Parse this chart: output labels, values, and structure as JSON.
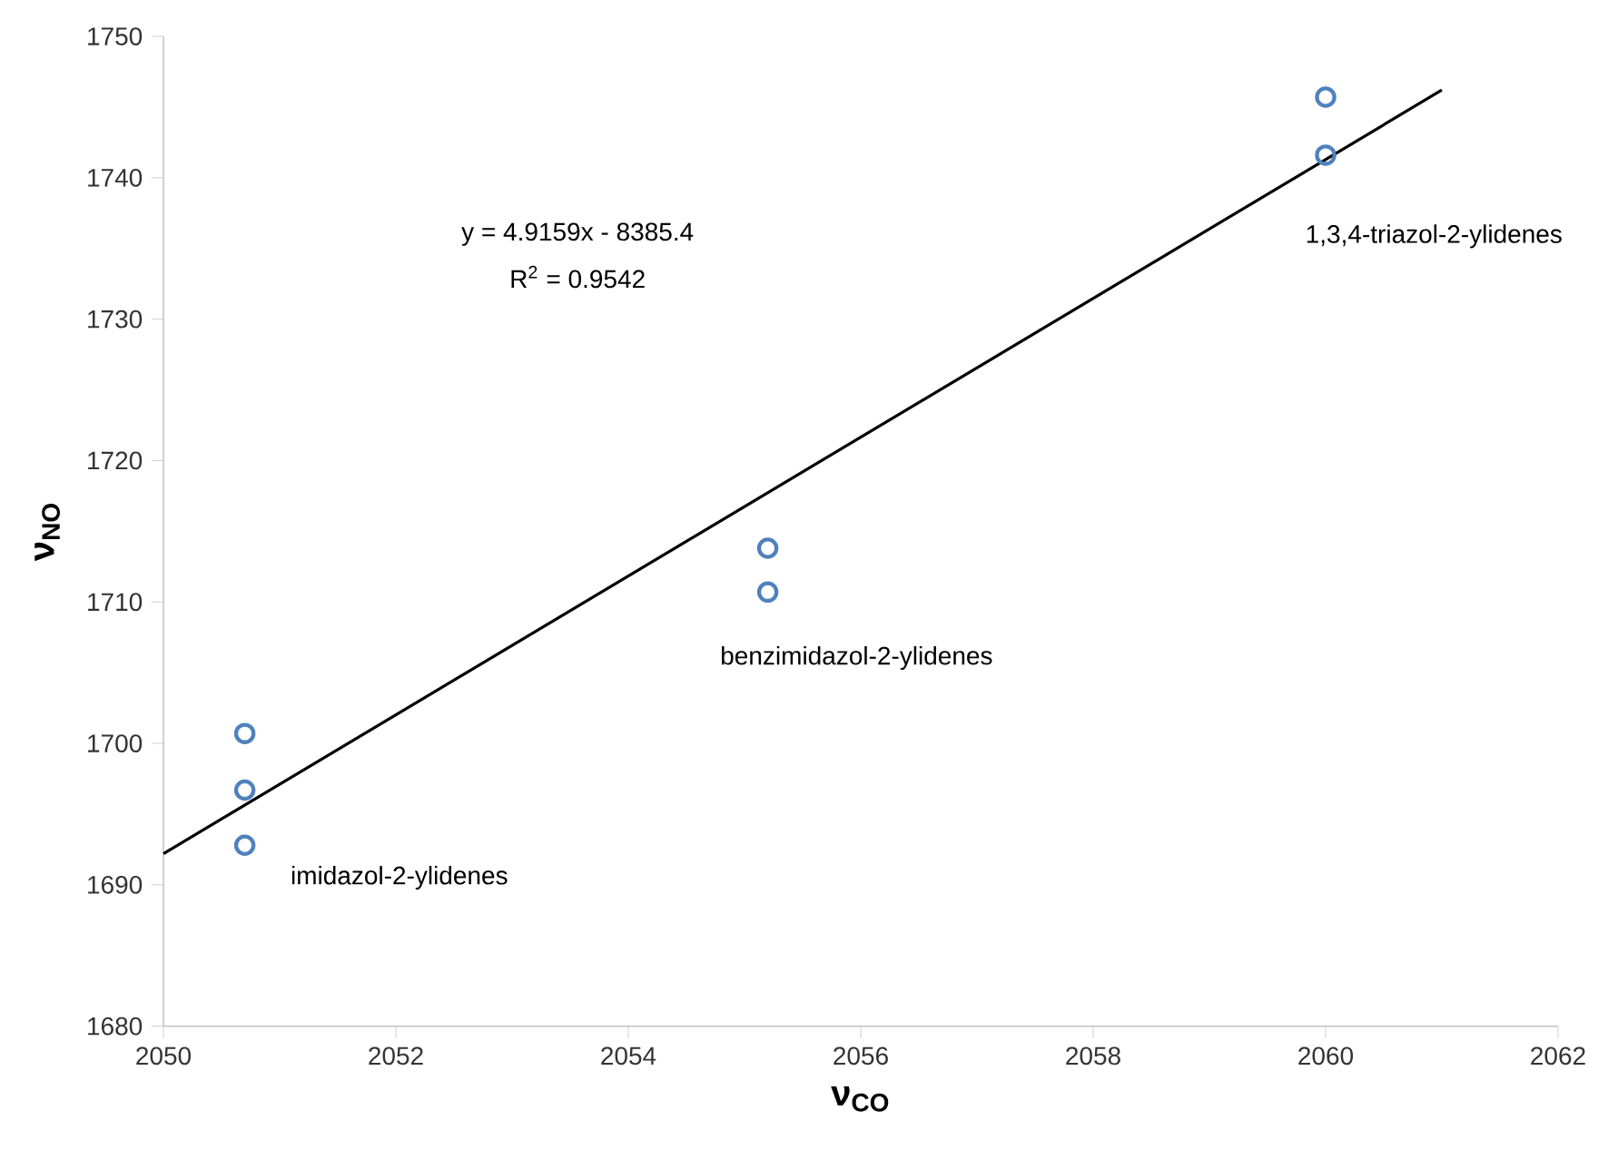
{
  "chart_data": {
    "type": "scatter",
    "xlabel": "ν$_{CO}$",
    "ylabel": "ν$_{NO}$",
    "series": [
      {
        "color": "#4f81bd",
        "marker": "circle",
        "x": [
          2050.7,
          2050.7,
          2050.7,
          2055.2,
          2055.2,
          2060,
          2060
        ],
        "values": [
          1700.7,
          1696.7,
          1692.8,
          1713.8,
          1710.7,
          1745.7,
          1741.6
        ]
      },
      {
        "type": "line",
        "color": "#000000",
        "marker": "none",
        "x": [
          2050,
          2061
        ],
        "values": [
          1692.2,
          1746.2
        ]
      }
    ],
    "xlim": [
      2050,
      2062
    ],
    "ylim": [
      1680,
      1750
    ],
    "xticks": [
      2050,
      2052,
      2054,
      2056,
      2058,
      2060,
      2062
    ],
    "yticks": [
      1680,
      1690,
      1700,
      1710,
      1720,
      1730,
      1740,
      1750
    ],
    "grid": false,
    "annotations": [
      "y = 4.9159x - 8385.4",
      "R$^{2}$ = 0.9542",
      "imidazol-2-ylidenes",
      "benzimidazol-2-ylidenes",
      "1,3,4-triazol-2-ylidenes"
    ]
  }
}
